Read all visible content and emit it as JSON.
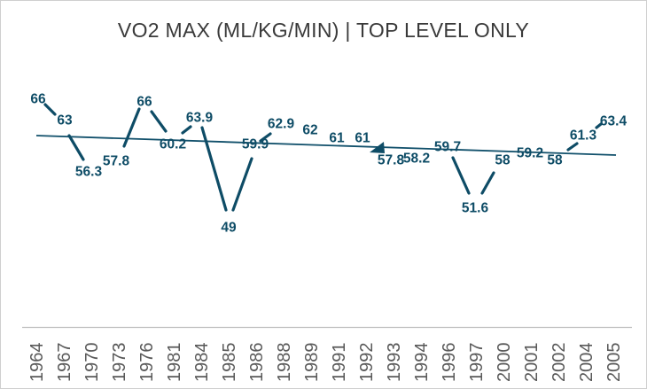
{
  "title": "VO2 MAX (ML/KG/MIN) | TOP LEVEL ONLY",
  "colors": {
    "series": "#0e4c66",
    "data_label": "#0e4c66",
    "trendline": "#11506b",
    "axis_label": "#595959",
    "axis_line": "#bfbfbf",
    "title": "#3a3a3a",
    "background": "#ffffff",
    "border": "#cfcfcf"
  },
  "chart_data": {
    "type": "line",
    "title": "VO2 MAX (ML/KG/MIN) | TOP LEVEL ONLY",
    "categories": [
      "1964",
      "1967",
      "1970",
      "1973",
      "1976",
      "1981",
      "1984",
      "1985",
      "1986",
      "1988",
      "1989",
      "1991",
      "1992",
      "1993",
      "1994",
      "1996",
      "1997",
      "2000",
      "2001",
      "2002",
      "2004",
      "2005"
    ],
    "values": [
      66,
      63,
      56.3,
      57.8,
      66,
      60.2,
      63.9,
      49,
      59.9,
      62.9,
      62,
      61,
      61,
      57.8,
      58.2,
      59.7,
      51.6,
      58,
      59.2,
      58,
      61.3,
      63.4
    ],
    "data_labels": [
      "66",
      "63",
      "56.3",
      "57.8",
      "66",
      "60.2",
      "63.9",
      "49",
      "59.9",
      "62.9",
      "62",
      "61",
      "61",
      "57.8",
      "58.2",
      "59.7",
      "51.6",
      "58",
      "59.2",
      "58",
      "61.3",
      "63.4"
    ],
    "xlabel": "",
    "ylabel": "",
    "y_axis_visible": false,
    "gridlines": false,
    "legend": "none",
    "x_tick_rotation": -90,
    "trendline": {
      "type": "linear",
      "start_value": 62.4,
      "end_value": 59.1
    }
  }
}
